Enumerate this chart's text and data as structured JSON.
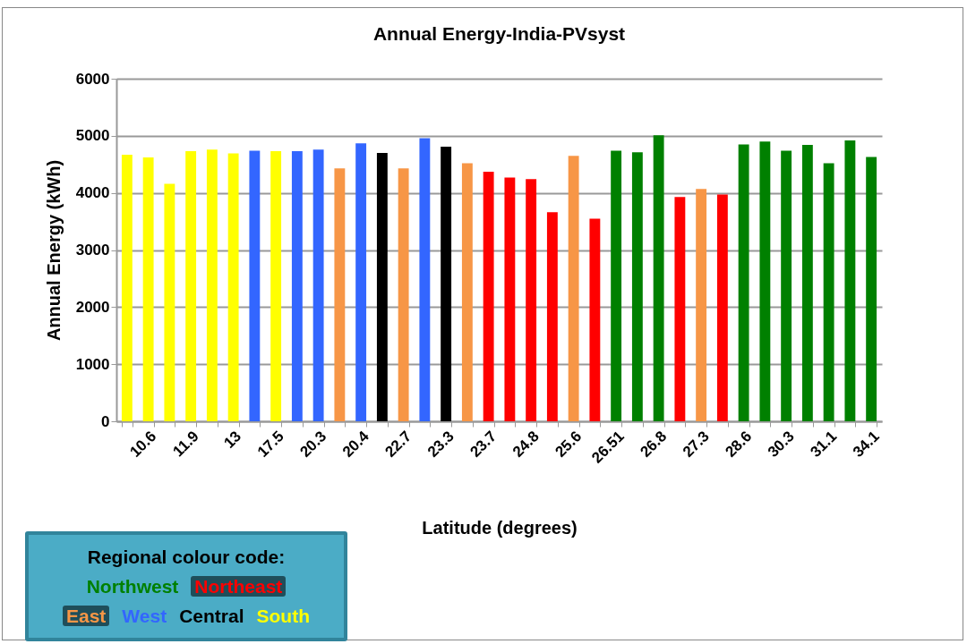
{
  "chart_data": {
    "type": "bar",
    "title": "Annual Energy-India-PVsyst",
    "xlabel": "Latitude (degrees)",
    "ylabel": "Annual Energy  (kWh)",
    "categories": [
      null,
      "10.6",
      null,
      "11.9",
      null,
      "13",
      null,
      "17.5",
      null,
      "20.3",
      null,
      "20.4",
      null,
      "22.7",
      null,
      "23.3",
      null,
      "23.7",
      null,
      "24.8",
      null,
      "25.6",
      null,
      "26.51",
      null,
      "26.8",
      null,
      "27.3",
      null,
      "28.6",
      null,
      "30.3",
      null,
      "31.1",
      null,
      "34.1"
    ],
    "series": [
      {
        "name": "Northwest",
        "color": "#008000",
        "values": [
          null,
          null,
          null,
          null,
          null,
          null,
          null,
          null,
          null,
          null,
          null,
          null,
          null,
          null,
          null,
          null,
          null,
          null,
          null,
          null,
          null,
          null,
          null,
          4740,
          4710,
          5010,
          null,
          null,
          null,
          4850,
          4900,
          4740,
          4840,
          4520,
          4920,
          4630
        ]
      },
      {
        "name": "Northeast",
        "color": "#ff0000",
        "values": [
          null,
          null,
          null,
          null,
          null,
          null,
          null,
          null,
          null,
          null,
          null,
          null,
          null,
          null,
          null,
          null,
          null,
          4370,
          4270,
          4240,
          3660,
          null,
          3550,
          null,
          null,
          null,
          3930,
          null,
          3970,
          null,
          null,
          null,
          null,
          null,
          null,
          null
        ]
      },
      {
        "name": "East",
        "color": "#f79646",
        "values": [
          null,
          null,
          null,
          null,
          null,
          null,
          null,
          null,
          null,
          null,
          4430,
          null,
          null,
          4430,
          null,
          null,
          4520,
          null,
          null,
          null,
          null,
          4650,
          null,
          null,
          null,
          null,
          null,
          4070,
          null,
          null,
          null,
          null,
          null,
          null,
          null,
          null
        ]
      },
      {
        "name": "West",
        "color": "#3366ff",
        "values": [
          null,
          null,
          null,
          null,
          null,
          null,
          4740,
          null,
          4730,
          4760,
          null,
          4870,
          null,
          null,
          4960,
          null,
          null,
          null,
          null,
          null,
          null,
          null,
          null,
          null,
          null,
          null,
          null,
          null,
          null,
          null,
          null,
          null,
          null,
          null,
          null,
          null
        ]
      },
      {
        "name": "Central",
        "color": "#000000",
        "values": [
          null,
          null,
          null,
          null,
          null,
          null,
          null,
          null,
          null,
          null,
          null,
          null,
          4700,
          null,
          null,
          4810,
          null,
          null,
          null,
          null,
          null,
          null,
          null,
          null,
          null,
          null,
          null,
          null,
          null,
          null,
          null,
          null,
          null,
          null,
          null,
          null
        ]
      },
      {
        "name": "South",
        "color": "#ffff00",
        "values": [
          4670,
          4620,
          4160,
          4730,
          4760,
          4690,
          null,
          4730,
          null,
          null,
          null,
          null,
          null,
          null,
          null,
          null,
          null,
          null,
          null,
          null,
          null,
          null,
          null,
          null,
          null,
          null,
          null,
          null,
          null,
          null,
          null,
          null,
          null,
          null,
          null,
          null
        ]
      }
    ],
    "legend_title": "Regional colour code:",
    "legend": "bottom left",
    "ylim": [
      0,
      6000
    ],
    "yticks": [
      0,
      1000,
      2000,
      3000,
      4000,
      5000,
      6000
    ],
    "grid": "y"
  }
}
